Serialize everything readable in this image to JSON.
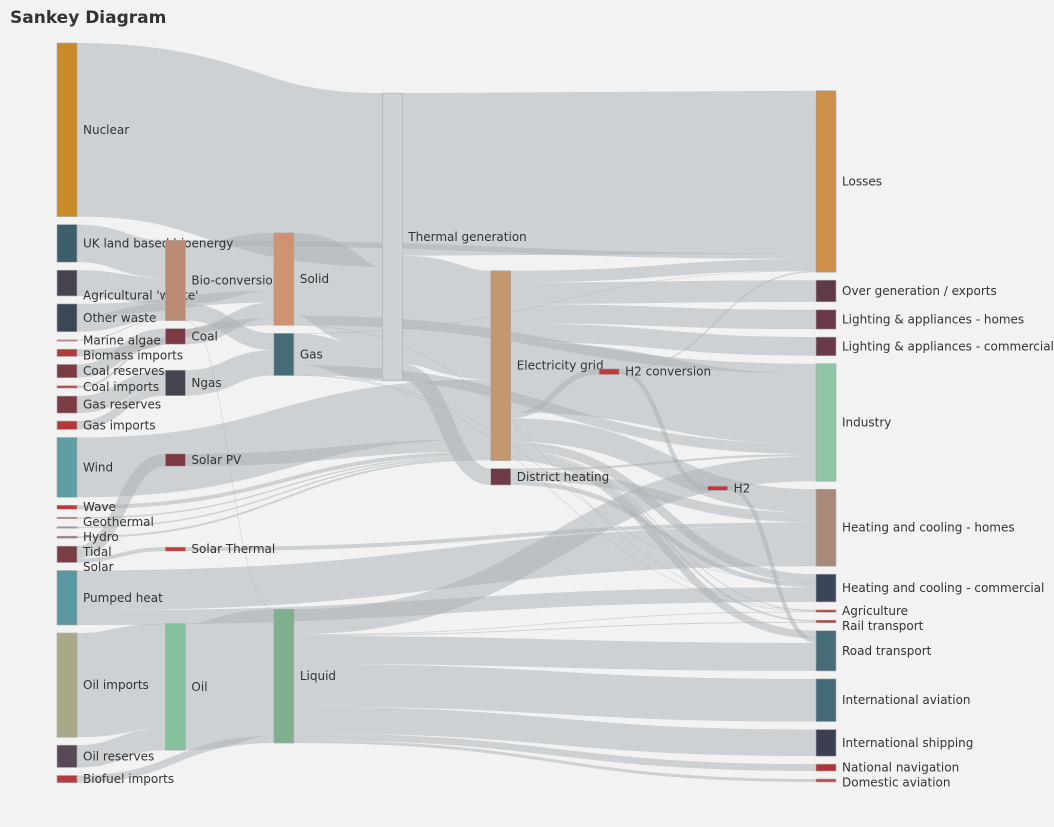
{
  "chart_data": {
    "type": "sankey",
    "title": "Sankey Diagram",
    "nodes": [
      {
        "name": "Nuclear",
        "color": "#c98a2a"
      },
      {
        "name": "UK land based bioenergy",
        "color": "#3d5f6b"
      },
      {
        "name": "Agricultural 'waste'",
        "color": "#46434f"
      },
      {
        "name": "Other waste",
        "color": "#3b4656"
      },
      {
        "name": "Marine algae",
        "color": "#b08080"
      },
      {
        "name": "Biomass imports",
        "color": "#b03a3a"
      },
      {
        "name": "Coal reserves",
        "color": "#7b3a44"
      },
      {
        "name": "Coal imports",
        "color": "#b24a4a"
      },
      {
        "name": "Gas reserves",
        "color": "#7b3c46"
      },
      {
        "name": "Gas imports",
        "color": "#b03a3a"
      },
      {
        "name": "Wind",
        "color": "#5f9ea2"
      },
      {
        "name": "Wave",
        "color": "#c03535"
      },
      {
        "name": "Geothermal",
        "color": "#c07070"
      },
      {
        "name": "Hydro",
        "color": "#b88888"
      },
      {
        "name": "Tidal",
        "color": "#b07070"
      },
      {
        "name": "Solar",
        "color": "#7a3c45"
      },
      {
        "name": "Pumped heat",
        "color": "#5a97a0"
      },
      {
        "name": "Oil imports",
        "color": "#a9a98a"
      },
      {
        "name": "Oil reserves",
        "color": "#554a55"
      },
      {
        "name": "Biofuel imports",
        "color": "#b53c3c"
      },
      {
        "name": "Bio-conversion",
        "color": "#b98a74"
      },
      {
        "name": "Coal",
        "color": "#7e3a44"
      },
      {
        "name": "Ngas",
        "color": "#454350"
      },
      {
        "name": "Solar PV",
        "color": "#7d3a44"
      },
      {
        "name": "Solar Thermal",
        "color": "#c03a3a"
      },
      {
        "name": "Oil",
        "color": "#86c09c"
      },
      {
        "name": "Solid",
        "color": "#cf9272"
      },
      {
        "name": "Gas",
        "color": "#466c78"
      },
      {
        "name": "Liquid",
        "color": "#7fb08e"
      },
      {
        "name": "Thermal generation",
        "color": "#cfd2d5"
      },
      {
        "name": "Electricity grid",
        "color": "#c4986e"
      },
      {
        "name": "District heating",
        "color": "#6e3b47"
      },
      {
        "name": "H2 conversion",
        "color": "#c03a3a"
      },
      {
        "name": "H2",
        "color": "#c03a3a"
      },
      {
        "name": "Losses",
        "color": "#cc904a"
      },
      {
        "name": "Over generation / exports",
        "color": "#5f3a48"
      },
      {
        "name": "Lighting & appliances - homes",
        "color": "#6b3a48"
      },
      {
        "name": "Lighting & appliances - commercial",
        "color": "#6b3a48"
      },
      {
        "name": "Industry",
        "color": "#8fc4a6"
      },
      {
        "name": "Heating and cooling - homes",
        "color": "#a88a7a"
      },
      {
        "name": "Heating and cooling - commercial",
        "color": "#3a4558"
      },
      {
        "name": "Agriculture",
        "color": "#c03a3a"
      },
      {
        "name": "Rail transport",
        "color": "#c03a3a"
      },
      {
        "name": "Road transport",
        "color": "#466c78"
      },
      {
        "name": "International aviation",
        "color": "#456b78"
      },
      {
        "name": "International shipping",
        "color": "#3b3f50"
      },
      {
        "name": "National navigation",
        "color": "#b03535"
      },
      {
        "name": "Domestic aviation",
        "color": "#c04a4a"
      }
    ],
    "links": [
      {
        "source": "Agricultural 'waste'",
        "target": "Bio-conversion",
        "value": 124.729
      },
      {
        "source": "Bio-conversion",
        "target": "Liquid",
        "value": 0.597
      },
      {
        "source": "Bio-conversion",
        "target": "Losses",
        "value": 26.862
      },
      {
        "source": "Bio-conversion",
        "target": "Solid",
        "value": 280.322
      },
      {
        "source": "Bio-conversion",
        "target": "Gas",
        "value": 81.144
      },
      {
        "source": "Biofuel imports",
        "target": "Liquid",
        "value": 35
      },
      {
        "source": "Biomass imports",
        "target": "Solid",
        "value": 35
      },
      {
        "source": "Coal imports",
        "target": "Coal",
        "value": 11.606
      },
      {
        "source": "Coal reserves",
        "target": "Coal",
        "value": 63.965
      },
      {
        "source": "Coal",
        "target": "Solid",
        "value": 75.571
      },
      {
        "source": "District heating",
        "target": "Industry",
        "value": 10.639
      },
      {
        "source": "District heating",
        "target": "Heating and cooling - commercial",
        "value": 22.505
      },
      {
        "source": "District heating",
        "target": "Heating and cooling - homes",
        "value": 46.184
      },
      {
        "source": "Electricity grid",
        "target": "Over generation / exports",
        "value": 104.453
      },
      {
        "source": "Electricity grid",
        "target": "Heating and cooling - homes",
        "value": 113.726
      },
      {
        "source": "Electricity grid",
        "target": "H2 conversion",
        "value": 27.14
      },
      {
        "source": "Electricity grid",
        "target": "Industry",
        "value": 342.165
      },
      {
        "source": "Electricity grid",
        "target": "Road transport",
        "value": 37.797
      },
      {
        "source": "Electricity grid",
        "target": "Agriculture",
        "value": 4.412
      },
      {
        "source": "Electricity grid",
        "target": "Heating and cooling - commercial",
        "value": 40.858
      },
      {
        "source": "Electricity grid",
        "target": "Losses",
        "value": 56.691
      },
      {
        "source": "Electricity grid",
        "target": "Rail transport",
        "value": 7.863
      },
      {
        "source": "Electricity grid",
        "target": "Lighting & appliances - commercial",
        "value": 90.008
      },
      {
        "source": "Electricity grid",
        "target": "Lighting & appliances - homes",
        "value": 93.494
      },
      {
        "source": "Gas imports",
        "target": "Ngas",
        "value": 40.719
      },
      {
        "source": "Gas reserves",
        "target": "Ngas",
        "value": 82.233
      },
      {
        "source": "Gas",
        "target": "Heating and cooling - commercial",
        "value": 0.129
      },
      {
        "source": "Gas",
        "target": "Losses",
        "value": 1.401
      },
      {
        "source": "Gas",
        "target": "Thermal generation",
        "value": 151.891
      },
      {
        "source": "Gas",
        "target": "Agriculture",
        "value": 2.096
      },
      {
        "source": "Gas",
        "target": "Industry",
        "value": 48.58
      },
      {
        "source": "Geothermal",
        "target": "Electricity grid",
        "value": 7.013
      },
      {
        "source": "H2 conversion",
        "target": "H2",
        "value": 20.897
      },
      {
        "source": "H2 conversion",
        "target": "Losses",
        "value": 6.242
      },
      {
        "source": "H2",
        "target": "Road transport",
        "value": 20.897
      },
      {
        "source": "Hydro",
        "target": "Electricity grid",
        "value": 6.995
      },
      {
        "source": "Liquid",
        "target": "Industry",
        "value": 121.066
      },
      {
        "source": "Liquid",
        "target": "International shipping",
        "value": 128.69
      },
      {
        "source": "Liquid",
        "target": "Road transport",
        "value": 135.835
      },
      {
        "source": "Liquid",
        "target": "Domestic aviation",
        "value": 14.458
      },
      {
        "source": "Liquid",
        "target": "International aviation",
        "value": 206.267
      },
      {
        "source": "Liquid",
        "target": "Agriculture",
        "value": 3.64
      },
      {
        "source": "Liquid",
        "target": "National navigation",
        "value": 33.218
      },
      {
        "source": "Liquid",
        "target": "Rail transport",
        "value": 4.413
      },
      {
        "source": "Marine algae",
        "target": "Bio-conversion",
        "value": 4.375
      },
      {
        "source": "Ngas",
        "target": "Gas",
        "value": 122.952
      },
      {
        "source": "Nuclear",
        "target": "Thermal generation",
        "value": 839.978
      },
      {
        "source": "Oil imports",
        "target": "Oil",
        "value": 504.287
      },
      {
        "source": "Oil reserves",
        "target": "Oil",
        "value": 107.703
      },
      {
        "source": "Oil",
        "target": "Liquid",
        "value": 611.99
      },
      {
        "source": "Other waste",
        "target": "Solid",
        "value": 56.587
      },
      {
        "source": "Other waste",
        "target": "Bio-conversion",
        "value": 77.81
      },
      {
        "source": "Pumped heat",
        "target": "Heating and cooling - homes",
        "value": 193.026
      },
      {
        "source": "Pumped heat",
        "target": "Heating and cooling - commercial",
        "value": 70.672
      },
      {
        "source": "Solar PV",
        "target": "Electricity grid",
        "value": 59.901
      },
      {
        "source": "Solar Thermal",
        "target": "Heating and cooling - homes",
        "value": 19.263
      },
      {
        "source": "Solar",
        "target": "Solar Thermal",
        "value": 19.263
      },
      {
        "source": "Solar",
        "target": "Solar PV",
        "value": 59.901
      },
      {
        "source": "Solid",
        "target": "Agriculture",
        "value": 0.882
      },
      {
        "source": "Solid",
        "target": "Thermal generation",
        "value": 400.12
      },
      {
        "source": "Solid",
        "target": "Industry",
        "value": 46.477
      },
      {
        "source": "Thermal generation",
        "target": "Electricity grid",
        "value": 525.531
      },
      {
        "source": "Thermal generation",
        "target": "Losses",
        "value": 787.129
      },
      {
        "source": "Thermal generation",
        "target": "District heating",
        "value": 79.329
      },
      {
        "source": "Tidal",
        "target": "Electricity grid",
        "value": 9.452
      },
      {
        "source": "UK land based bioenergy",
        "target": "Bio-conversion",
        "value": 182.01
      },
      {
        "source": "Wave",
        "target": "Electricity grid",
        "value": 19.013
      },
      {
        "source": "Wind",
        "target": "Electricity grid",
        "value": 289.366
      }
    ]
  }
}
